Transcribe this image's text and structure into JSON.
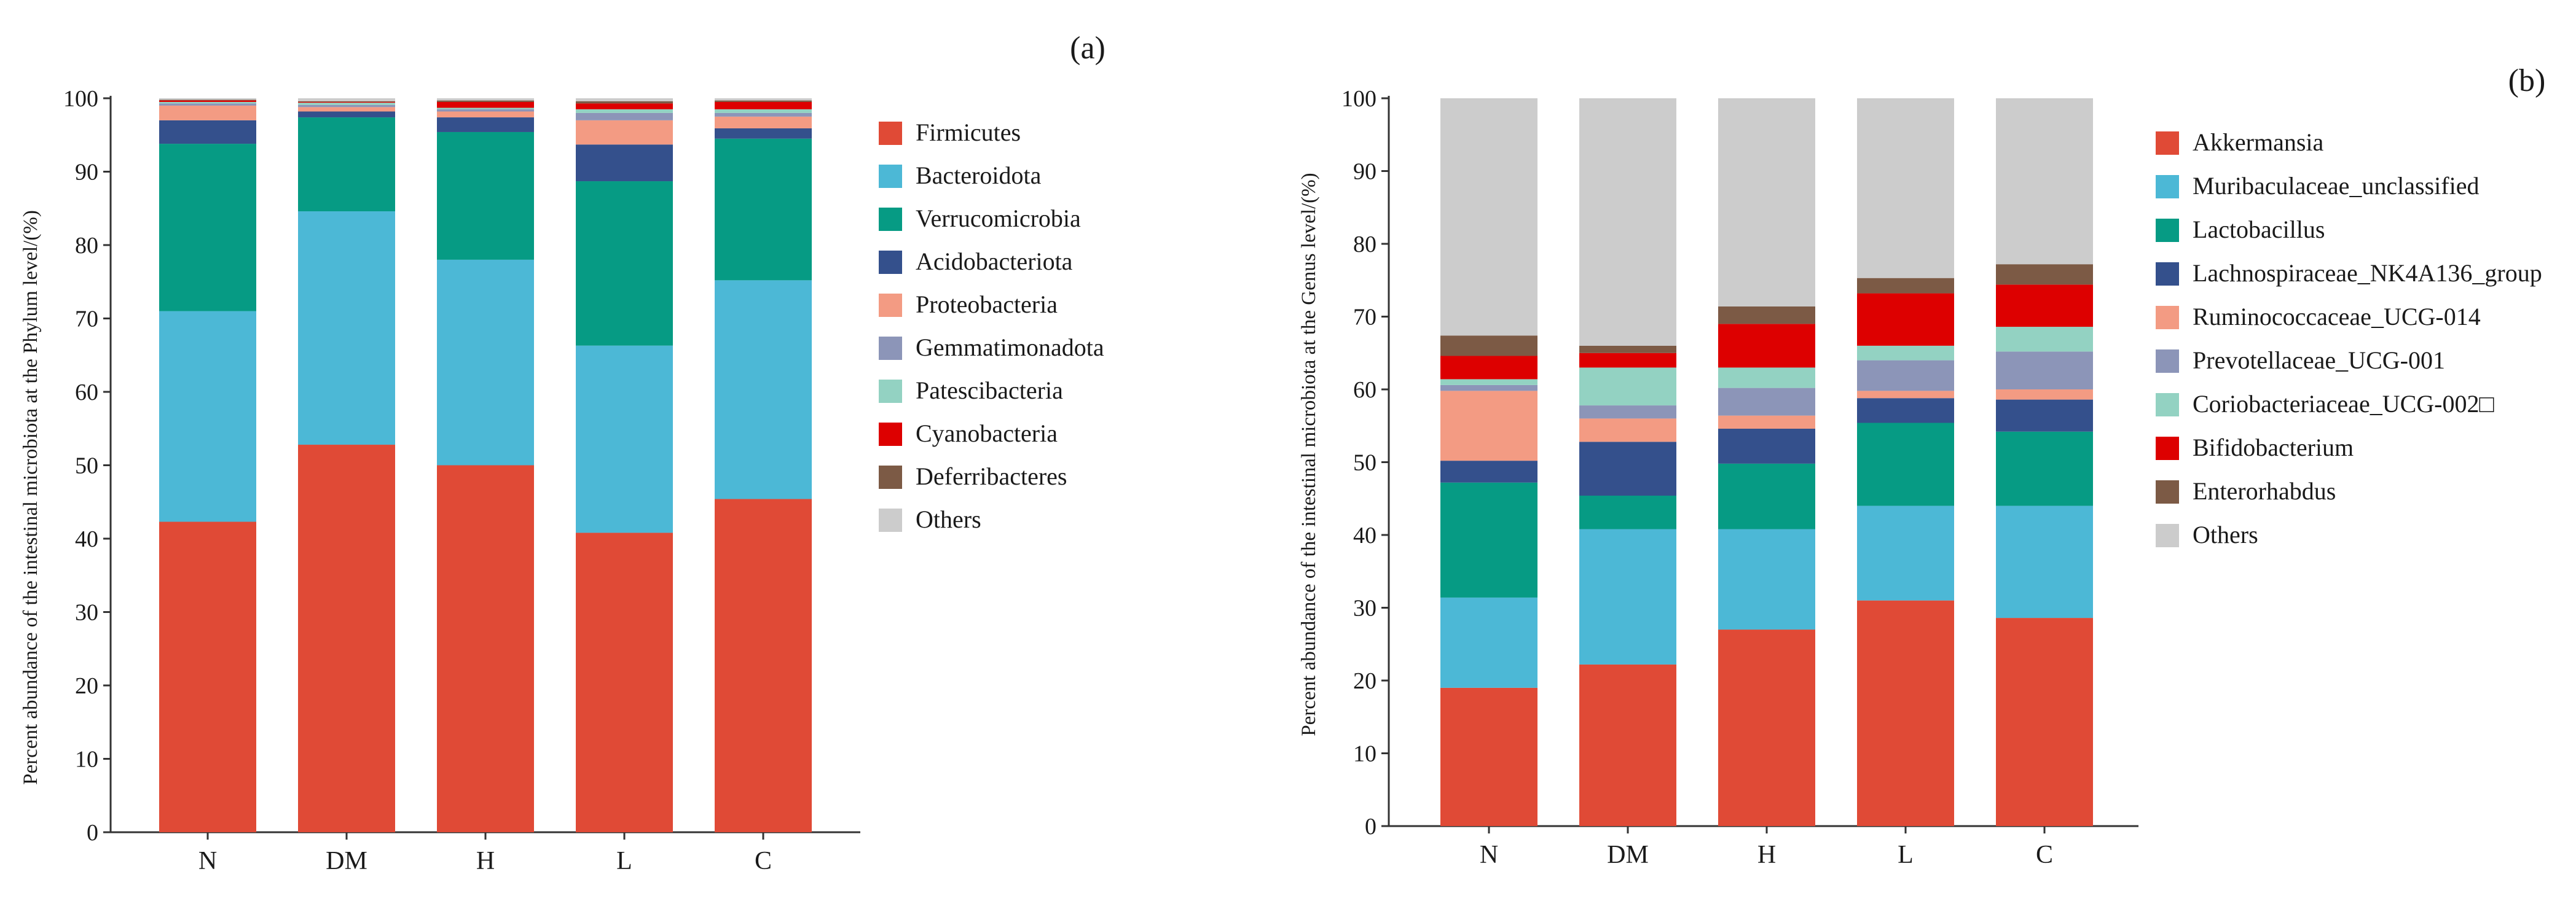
{
  "chart_data": [
    {
      "type": "bar",
      "stacked": true,
      "panel_label": "(a)",
      "title": "",
      "xlabel": "",
      "ylabel": "Percent abundance of the intestinal microbiota  at the Phylum level/(%)",
      "ylim": [
        0,
        100
      ],
      "yticks": [
        "0",
        "10",
        "20",
        "30",
        "40",
        "50",
        "60",
        "70",
        "80",
        "90",
        "100"
      ],
      "grid": false,
      "legend_position": "right",
      "categories": [
        "N",
        "DM",
        "H",
        "L",
        "C"
      ],
      "series": [
        {
          "name": "Firmicutes",
          "color": "#e04a36",
          "values": [
            42.3,
            52.8,
            50.0,
            40.8,
            45.4
          ]
        },
        {
          "name": "Bacteroidota",
          "color": "#4cb8d6",
          "values": [
            28.7,
            31.8,
            28.0,
            25.5,
            29.8
          ]
        },
        {
          "name": "Verrucomicrobia",
          "color": "#069b84",
          "values": [
            22.8,
            12.8,
            17.4,
            22.4,
            19.3
          ]
        },
        {
          "name": "Acidobacteriota",
          "color": "#34508c",
          "values": [
            3.2,
            0.8,
            2.0,
            5.0,
            1.4
          ]
        },
        {
          "name": "Proteobacteria",
          "color": "#f39b83",
          "values": [
            2.0,
            0.6,
            0.8,
            3.3,
            1.6
          ]
        },
        {
          "name": "Gemmatimonadota",
          "color": "#8c95b8",
          "values": [
            0.3,
            0.3,
            0.3,
            1.0,
            0.5
          ]
        },
        {
          "name": "Patescibacteria",
          "color": "#93d2c2",
          "values": [
            0.2,
            0.3,
            0.2,
            0.5,
            0.5
          ]
        },
        {
          "name": "Cyanobacteria",
          "color": "#dd0000",
          "values": [
            0.2,
            0.1,
            0.8,
            0.8,
            1.0
          ]
        },
        {
          "name": "Deferribacteres",
          "color": "#7c5a45",
          "values": [
            0.1,
            0.1,
            0.2,
            0.3,
            0.2
          ]
        },
        {
          "name": "Others",
          "color": "#cccccc",
          "values": [
            0.2,
            0.4,
            0.3,
            0.4,
            0.3
          ]
        }
      ]
    },
    {
      "type": "bar",
      "stacked": true,
      "panel_label": "(b)",
      "title": "",
      "xlabel": "",
      "ylabel": "Percent abundance of the intestinal microbiota  at the Genus level/(%)",
      "ylim": [
        0,
        100
      ],
      "yticks": [
        "0",
        "10",
        "20",
        "30",
        "40",
        "50",
        "60",
        "70",
        "80",
        "90",
        "100"
      ],
      "grid": false,
      "legend_position": "right",
      "categories": [
        "N",
        "DM",
        "H",
        "L",
        "C"
      ],
      "series": [
        {
          "name": "Akkermansia",
          "color": "#e04a36",
          "values": [
            19.0,
            22.2,
            27.0,
            31.0,
            28.6
          ]
        },
        {
          "name": "Muribaculaceae_unclassified",
          "color": "#4cb8d6",
          "values": [
            12.4,
            18.6,
            13.8,
            13.0,
            15.4
          ]
        },
        {
          "name": "Lactobacillus",
          "color": "#069b84",
          "values": [
            15.8,
            4.6,
            9.0,
            11.4,
            10.2
          ]
        },
        {
          "name": "Lachnospiraceae_NK4A136_group",
          "color": "#34508c",
          "values": [
            3.0,
            7.4,
            4.8,
            3.4,
            4.4
          ]
        },
        {
          "name": "Ruminococcaceae_UCG-014",
          "color": "#f39b83",
          "values": [
            9.6,
            3.2,
            1.8,
            1.0,
            1.4
          ]
        },
        {
          "name": "Prevotellaceae_UCG-001",
          "color": "#8c95b8",
          "values": [
            0.8,
            1.8,
            3.8,
            4.2,
            5.2
          ]
        },
        {
          "name": "Coriobacteriaceae_UCG-002□",
          "color": "#93d2c2",
          "values": [
            0.8,
            5.2,
            2.8,
            2.0,
            3.4
          ]
        },
        {
          "name": "Bifidobacterium",
          "color": "#dd0000",
          "values": [
            3.2,
            2.0,
            6.0,
            7.2,
            5.8
          ]
        },
        {
          "name": "Enterorhabdus",
          "color": "#7c5a45",
          "values": [
            2.8,
            1.0,
            2.4,
            2.1,
            2.8
          ]
        },
        {
          "name": "Others",
          "color": "#cccccc",
          "values": [
            32.6,
            34.0,
            28.6,
            24.7,
            22.8
          ]
        }
      ]
    }
  ]
}
